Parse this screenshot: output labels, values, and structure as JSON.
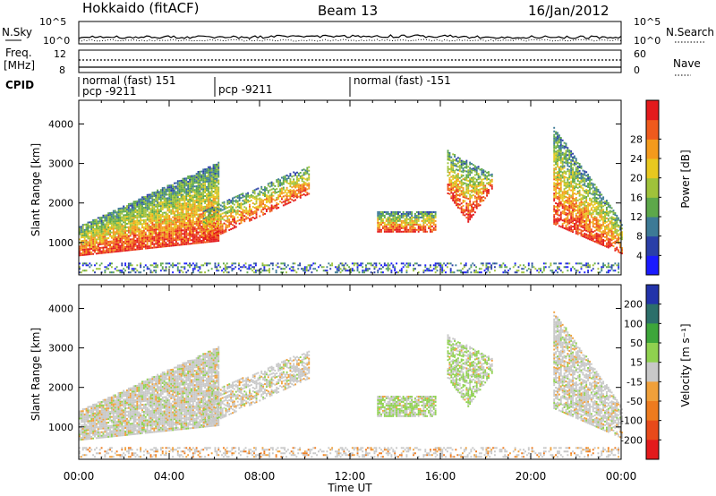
{
  "header": {
    "station": "Hokkaido (fitACF)",
    "beam": "Beam 13",
    "date": "16/Jan/2012"
  },
  "status_panels": {
    "noise": {
      "left_label": "N.Sky",
      "right_label": "N.Search",
      "ticks_left": [
        "10^5",
        "10^0"
      ],
      "ticks_right": [
        "10^5",
        "10^0"
      ]
    },
    "freq": {
      "left_label_1": "Freq.",
      "left_label_2": "[MHz]",
      "right_label": "Nave",
      "ticks_left": [
        "12",
        "8"
      ],
      "ticks_right": [
        "60",
        "0"
      ]
    },
    "cpid": {
      "label": "CPID",
      "entries": [
        {
          "text": "normal (fast) 151",
          "start_hour": 0
        },
        {
          "text": "pcp -9211",
          "start_hour": 0
        },
        {
          "text": "pcp -9211",
          "start_hour": 6
        },
        {
          "text": "normal (fast) -151",
          "start_hour": 12
        }
      ]
    }
  },
  "chart_data": [
    {
      "type": "heatmap",
      "title": "Power",
      "ylabel": "Slant Range [km]",
      "xlabel": "Time UT",
      "x_range_hours": [
        0,
        24
      ],
      "y_range_km": [
        180,
        4600
      ],
      "x_ticks": [
        "00:00",
        "04:00",
        "08:00",
        "12:00",
        "16:00",
        "20:00",
        "00:00"
      ],
      "y_ticks": [
        1000,
        2000,
        3000,
        4000
      ],
      "colorbar": {
        "label": "Power [dB]",
        "ticks": [
          4,
          8,
          12,
          16,
          20,
          24,
          28
        ],
        "colors": [
          "#1a1aff",
          "#2a3fa8",
          "#3d7a96",
          "#5da84a",
          "#9fc23a",
          "#e8c81f",
          "#f49a1c",
          "#ef5a1d",
          "#e31a1c"
        ]
      }
    },
    {
      "type": "heatmap",
      "title": "Velocity",
      "ylabel": "Slant Range [km]",
      "xlabel": "Time UT",
      "x_range_hours": [
        0,
        24
      ],
      "y_range_km": [
        180,
        4600
      ],
      "x_ticks": [
        "00:00",
        "04:00",
        "08:00",
        "12:00",
        "16:00",
        "20:00",
        "00:00"
      ],
      "y_ticks": [
        1000,
        2000,
        3000,
        4000
      ],
      "colorbar": {
        "label": "Velocity [m s⁻¹]",
        "ticks": [
          200,
          100,
          50,
          15,
          -15,
          -50,
          -100,
          -200
        ],
        "colors": [
          "#2233aa",
          "#2c6f6a",
          "#3da63a",
          "#8fd14f",
          "#c8c8c8",
          "#f0a03a",
          "#ee7b1e",
          "#e84a1a",
          "#e31a1c"
        ]
      }
    }
  ],
  "colors": {
    "ground_scatter": "#b5b5b5",
    "trace": "#000000"
  }
}
